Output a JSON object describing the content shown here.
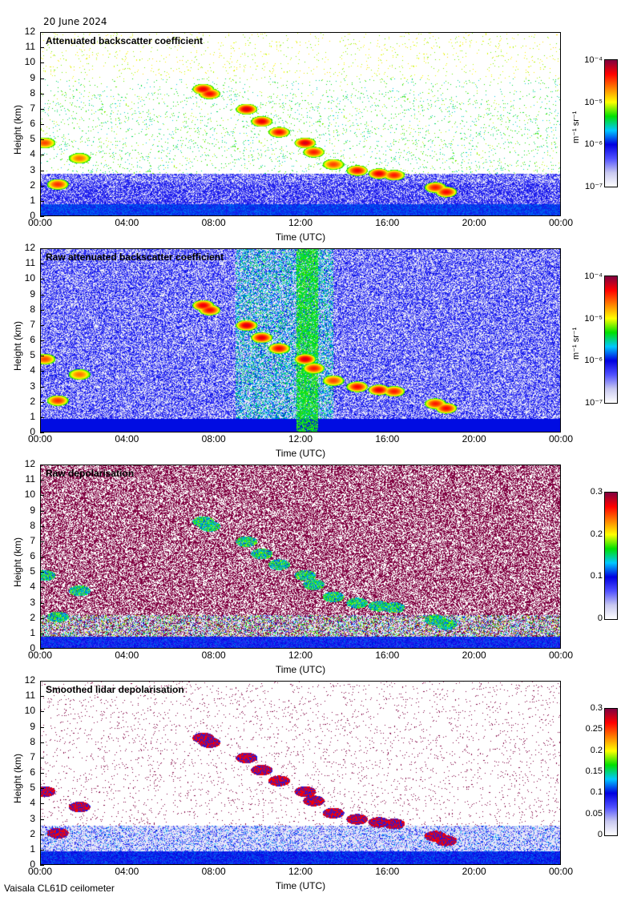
{
  "date_label": "20 June 2024",
  "footer": "Vaisala CL61D ceilometer",
  "colormap": [
    "#ffffff",
    "#c8c8f0",
    "#5050ff",
    "#0000e0",
    "#00c8ff",
    "#00e000",
    "#ffff00",
    "#ff8000",
    "#ff0000",
    "#800040"
  ],
  "chart_data": [
    {
      "type": "heatmap",
      "title": "Attenuated backscatter coefficient",
      "xlabel": "Time (UTC)",
      "ylabel": "Height (km)",
      "xticks": [
        "00:00",
        "04:00",
        "08:00",
        "12:00",
        "16:00",
        "20:00",
        "00:00"
      ],
      "yticks": [
        "0",
        "1",
        "2",
        "3",
        "4",
        "5",
        "6",
        "7",
        "8",
        "9",
        "10",
        "11",
        "12"
      ],
      "ylim": [
        0,
        12
      ],
      "scale": "log",
      "colorbar_ticks": [
        "10⁻⁴",
        "10⁻⁵",
        "10⁻⁶",
        "10⁻⁷"
      ],
      "colorbar_unit": "m⁻¹ sr⁻¹",
      "clim": [
        1e-07,
        0.0001
      ]
    },
    {
      "type": "heatmap",
      "title": "Raw attenuated backscatter coefficient",
      "xlabel": "Time (UTC)",
      "ylabel": "Height (km)",
      "xticks": [
        "00:00",
        "04:00",
        "08:00",
        "12:00",
        "16:00",
        "20:00",
        "00:00"
      ],
      "yticks": [
        "0",
        "1",
        "2",
        "3",
        "4",
        "5",
        "6",
        "7",
        "8",
        "9",
        "10",
        "11",
        "12"
      ],
      "ylim": [
        0,
        12
      ],
      "scale": "log",
      "colorbar_ticks": [
        "10⁻⁴",
        "10⁻⁵",
        "10⁻⁶",
        "10⁻⁷"
      ],
      "colorbar_unit": "m⁻¹ sr⁻¹",
      "clim": [
        1e-07,
        0.0001
      ]
    },
    {
      "type": "heatmap",
      "title": "Raw depolarisation",
      "xlabel": "Time (UTC)",
      "ylabel": "Height (km)",
      "xticks": [
        "00:00",
        "04:00",
        "08:00",
        "12:00",
        "16:00",
        "20:00",
        "00:00"
      ],
      "yticks": [
        "0",
        "1",
        "2",
        "3",
        "4",
        "5",
        "6",
        "7",
        "8",
        "9",
        "10",
        "11",
        "12"
      ],
      "ylim": [
        0,
        12
      ],
      "scale": "linear",
      "colorbar_ticks": [
        "0.3",
        "0.2",
        "0.1",
        "0"
      ],
      "colorbar_unit": "",
      "clim": [
        0,
        0.3
      ]
    },
    {
      "type": "heatmap",
      "title": "Smoothed lidar depolarisation",
      "xlabel": "Time (UTC)",
      "ylabel": "Height (km)",
      "xticks": [
        "00:00",
        "04:00",
        "08:00",
        "12:00",
        "16:00",
        "20:00",
        "00:00"
      ],
      "yticks": [
        "0",
        "1",
        "2",
        "3",
        "4",
        "5",
        "6",
        "7",
        "8",
        "9",
        "10",
        "11",
        "12"
      ],
      "ylim": [
        0,
        12
      ],
      "scale": "linear",
      "colorbar_ticks": [
        "0.3",
        "0.25",
        "0.2",
        "0.15",
        "0.1",
        "0.05",
        "0"
      ],
      "colorbar_unit": "",
      "clim": [
        0,
        0.3
      ]
    }
  ]
}
